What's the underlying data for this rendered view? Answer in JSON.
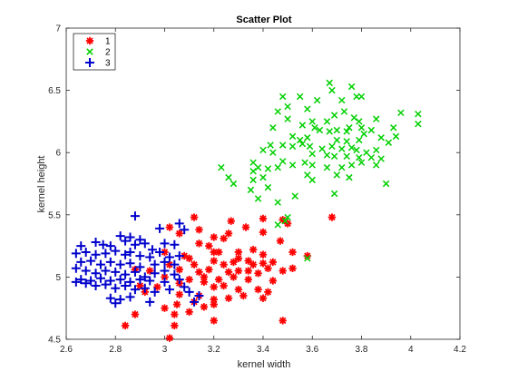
{
  "chart_data": {
    "type": "scatter",
    "title": "Scatter Plot",
    "xlabel": "kernel width",
    "ylabel": "kernel height",
    "xlim": [
      2.6,
      4.2
    ],
    "ylim": [
      4.5,
      7.0
    ],
    "xticks": [
      2.6,
      2.8,
      3.0,
      3.2,
      3.4,
      3.6,
      3.8,
      4.0,
      4.2
    ],
    "xtick_labels": [
      "2.6",
      "2.8",
      "3",
      "3.2",
      "3.4",
      "3.6",
      "3.8",
      "4",
      "4.2"
    ],
    "yticks": [
      4.5,
      5.0,
      5.5,
      6.0,
      6.5,
      7.0
    ],
    "ytick_labels": [
      "4.5",
      "5",
      "5.5",
      "6",
      "6.5",
      "7"
    ],
    "grid": false,
    "legend_position": "top-left",
    "series": [
      {
        "name": "1",
        "color": "#ff0000",
        "marker": "asterisk",
        "points": [
          [
            3.12,
            5.48
          ],
          [
            3.02,
            5.4
          ],
          [
            3.14,
            5.38
          ],
          [
            3.27,
            5.45
          ],
          [
            3.33,
            5.4
          ],
          [
            3.4,
            5.47
          ],
          [
            3.06,
            5.35
          ],
          [
            3.2,
            5.32
          ],
          [
            3.26,
            5.35
          ],
          [
            3.24,
            5.31
          ],
          [
            3.4,
            5.36
          ],
          [
            3.48,
            5.46
          ],
          [
            3.5,
            5.43
          ],
          [
            3.47,
            5.29
          ],
          [
            3.68,
            5.48
          ],
          [
            3.18,
            5.25
          ],
          [
            3.14,
            5.27
          ],
          [
            3.2,
            5.2
          ],
          [
            3.22,
            5.2
          ],
          [
            3.3,
            5.2
          ],
          [
            3.36,
            5.22
          ],
          [
            3.4,
            5.18
          ],
          [
            3.52,
            5.2
          ],
          [
            3.58,
            5.17
          ],
          [
            3.0,
            5.2
          ],
          [
            3.08,
            5.17
          ],
          [
            3.1,
            5.15
          ],
          [
            3.12,
            5.1
          ],
          [
            3.2,
            5.13
          ],
          [
            3.24,
            5.1
          ],
          [
            3.28,
            5.12
          ],
          [
            3.3,
            5.15
          ],
          [
            3.34,
            5.13
          ],
          [
            3.36,
            5.1
          ],
          [
            3.4,
            5.11
          ],
          [
            3.44,
            5.12
          ],
          [
            3.02,
            5.1
          ],
          [
            3.06,
            5.06
          ],
          [
            3.14,
            5.04
          ],
          [
            3.18,
            5.06
          ],
          [
            3.26,
            5.04
          ],
          [
            3.3,
            5.05
          ],
          [
            3.34,
            5.05
          ],
          [
            3.38,
            5.03
          ],
          [
            3.42,
            5.07
          ],
          [
            3.48,
            5.05
          ],
          [
            3.52,
            5.07
          ],
          [
            2.88,
            5.06
          ],
          [
            2.94,
            5.05
          ],
          [
            3.0,
            5.0
          ],
          [
            3.1,
            4.98
          ],
          [
            3.16,
            5.0
          ],
          [
            3.22,
            4.98
          ],
          [
            3.28,
            5.0
          ],
          [
            3.34,
            4.98
          ],
          [
            3.44,
            4.97
          ],
          [
            2.9,
            4.93
          ],
          [
            2.97,
            4.92
          ],
          [
            3.06,
            4.95
          ],
          [
            3.16,
            4.96
          ],
          [
            3.2,
            4.92
          ],
          [
            3.24,
            4.93
          ],
          [
            3.3,
            4.9
          ],
          [
            3.38,
            4.9
          ],
          [
            3.42,
            4.88
          ],
          [
            2.92,
            4.88
          ],
          [
            3.06,
            4.86
          ],
          [
            3.14,
            4.85
          ],
          [
            3.2,
            4.82
          ],
          [
            3.26,
            4.83
          ],
          [
            3.32,
            4.85
          ],
          [
            3.4,
            4.83
          ],
          [
            3.05,
            4.78
          ],
          [
            3.12,
            4.8
          ],
          [
            3.16,
            4.76
          ],
          [
            3.2,
            4.78
          ],
          [
            3.1,
            4.72
          ],
          [
            3.0,
            4.75
          ],
          [
            2.88,
            4.7
          ],
          [
            3.04,
            4.7
          ],
          [
            2.84,
            4.61
          ],
          [
            3.04,
            4.61
          ],
          [
            3.02,
            4.51
          ],
          [
            3.2,
            4.65
          ],
          [
            3.48,
            4.65
          ]
        ]
      },
      {
        "name": "2",
        "color": "#00d000",
        "marker": "x",
        "points": [
          [
            3.67,
            6.56
          ],
          [
            3.68,
            6.5
          ],
          [
            3.76,
            6.53
          ],
          [
            3.48,
            6.45
          ],
          [
            3.55,
            6.45
          ],
          [
            3.62,
            6.42
          ],
          [
            3.72,
            6.42
          ],
          [
            3.78,
            6.45
          ],
          [
            3.8,
            6.45
          ],
          [
            3.96,
            6.32
          ],
          [
            4.03,
            6.31
          ],
          [
            3.5,
            6.37
          ],
          [
            3.46,
            6.33
          ],
          [
            3.58,
            6.35
          ],
          [
            3.73,
            6.33
          ],
          [
            3.69,
            6.3
          ],
          [
            3.5,
            6.27
          ],
          [
            3.44,
            6.2
          ],
          [
            3.6,
            6.25
          ],
          [
            3.66,
            6.25
          ],
          [
            3.7,
            6.18
          ],
          [
            3.77,
            6.28
          ],
          [
            3.79,
            6.25
          ],
          [
            3.8,
            6.2
          ],
          [
            3.86,
            6.27
          ],
          [
            3.93,
            6.2
          ],
          [
            4.03,
            6.23
          ],
          [
            3.56,
            6.22
          ],
          [
            3.61,
            6.2
          ],
          [
            3.63,
            6.18
          ],
          [
            3.67,
            6.17
          ],
          [
            3.74,
            6.17
          ],
          [
            3.75,
            6.2
          ],
          [
            3.84,
            6.18
          ],
          [
            3.88,
            6.12
          ],
          [
            3.94,
            6.13
          ],
          [
            3.52,
            6.13
          ],
          [
            3.55,
            6.1
          ],
          [
            3.58,
            6.12
          ],
          [
            3.7,
            6.1
          ],
          [
            3.74,
            6.09
          ],
          [
            3.79,
            6.1
          ],
          [
            3.81,
            6.15
          ],
          [
            3.91,
            6.08
          ],
          [
            3.43,
            6.06
          ],
          [
            3.48,
            6.06
          ],
          [
            3.52,
            6.05
          ],
          [
            3.56,
            6.07
          ],
          [
            3.59,
            6.05
          ],
          [
            3.64,
            6.03
          ],
          [
            3.68,
            6.05
          ],
          [
            3.72,
            6.03
          ],
          [
            3.76,
            6.04
          ],
          [
            3.78,
            6.02
          ],
          [
            3.82,
            6.0
          ],
          [
            3.86,
            6.02
          ],
          [
            3.4,
            6.02
          ],
          [
            3.44,
            6.0
          ],
          [
            3.6,
            5.99
          ],
          [
            3.66,
            5.98
          ],
          [
            3.69,
            5.97
          ],
          [
            3.74,
            5.97
          ],
          [
            3.79,
            5.96
          ],
          [
            3.84,
            5.96
          ],
          [
            3.88,
            5.95
          ],
          [
            3.48,
            5.93
          ],
          [
            3.52,
            5.9
          ],
          [
            3.57,
            5.92
          ],
          [
            3.6,
            5.9
          ],
          [
            3.46,
            5.88
          ],
          [
            3.66,
            5.88
          ],
          [
            3.72,
            5.88
          ],
          [
            3.76,
            5.9
          ],
          [
            3.8,
            5.92
          ],
          [
            3.86,
            5.9
          ],
          [
            3.36,
            5.92
          ],
          [
            3.38,
            5.88
          ],
          [
            3.42,
            5.87
          ],
          [
            3.23,
            5.88
          ],
          [
            3.36,
            5.85
          ],
          [
            3.4,
            5.8
          ],
          [
            3.7,
            5.82
          ],
          [
            3.75,
            5.8
          ],
          [
            3.26,
            5.8
          ],
          [
            3.28,
            5.75
          ],
          [
            3.36,
            5.78
          ],
          [
            3.58,
            5.82
          ],
          [
            3.9,
            5.75
          ],
          [
            3.35,
            5.7
          ],
          [
            3.42,
            5.72
          ],
          [
            3.6,
            5.78
          ],
          [
            3.69,
            5.67
          ],
          [
            3.53,
            5.65
          ],
          [
            3.38,
            5.63
          ],
          [
            3.46,
            5.6
          ],
          [
            3.5,
            5.48
          ],
          [
            3.49,
            5.45
          ],
          [
            3.46,
            5.42
          ],
          [
            3.58,
            5.15
          ]
        ]
      },
      {
        "name": "3",
        "color": "#0000cc",
        "marker": "plus",
        "points": [
          [
            2.88,
            5.49
          ],
          [
            3.06,
            5.43
          ],
          [
            2.82,
            5.33
          ],
          [
            2.86,
            5.32
          ],
          [
            2.9,
            5.3
          ],
          [
            2.98,
            5.39
          ],
          [
            3.08,
            5.38
          ],
          [
            2.66,
            5.25
          ],
          [
            2.72,
            5.28
          ],
          [
            2.75,
            5.26
          ],
          [
            2.78,
            5.25
          ],
          [
            2.84,
            5.29
          ],
          [
            2.88,
            5.26
          ],
          [
            2.92,
            5.27
          ],
          [
            2.95,
            5.22
          ],
          [
            3.0,
            5.27
          ],
          [
            3.04,
            5.26
          ],
          [
            2.64,
            5.19
          ],
          [
            2.68,
            5.2
          ],
          [
            2.72,
            5.18
          ],
          [
            2.76,
            5.19
          ],
          [
            2.8,
            5.21
          ],
          [
            2.84,
            5.18
          ],
          [
            2.86,
            5.2
          ],
          [
            2.9,
            5.17
          ],
          [
            2.94,
            5.16
          ],
          [
            2.98,
            5.2
          ],
          [
            3.02,
            5.16
          ],
          [
            3.06,
            5.17
          ],
          [
            2.66,
            5.12
          ],
          [
            2.7,
            5.13
          ],
          [
            2.74,
            5.1
          ],
          [
            2.78,
            5.12
          ],
          [
            2.82,
            5.1
          ],
          [
            2.86,
            5.11
          ],
          [
            2.9,
            5.08
          ],
          [
            2.96,
            5.1
          ],
          [
            3.0,
            5.12
          ],
          [
            3.04,
            5.1
          ],
          [
            2.64,
            5.07
          ],
          [
            2.68,
            5.05
          ],
          [
            2.72,
            5.03
          ],
          [
            2.76,
            5.05
          ],
          [
            2.8,
            5.04
          ],
          [
            2.84,
            5.02
          ],
          [
            2.88,
            5.04
          ],
          [
            2.92,
            5.0
          ],
          [
            2.96,
            5.03
          ],
          [
            3.0,
            5.05
          ],
          [
            3.04,
            5.02
          ],
          [
            2.66,
            4.98
          ],
          [
            2.7,
            4.97
          ],
          [
            2.74,
            4.99
          ],
          [
            2.78,
            4.97
          ],
          [
            2.82,
            4.98
          ],
          [
            2.86,
            4.96
          ],
          [
            2.9,
            4.98
          ],
          [
            2.94,
            4.97
          ],
          [
            3.0,
            4.96
          ],
          [
            3.06,
            4.98
          ],
          [
            2.64,
            4.96
          ],
          [
            2.68,
            4.95
          ],
          [
            2.72,
            4.93
          ],
          [
            2.76,
            4.94
          ],
          [
            2.8,
            4.91
          ],
          [
            2.84,
            4.93
          ],
          [
            2.88,
            4.9
          ],
          [
            2.92,
            4.91
          ],
          [
            2.96,
            4.88
          ],
          [
            3.02,
            4.9
          ],
          [
            3.08,
            4.92
          ],
          [
            3.14,
            4.85
          ],
          [
            2.78,
            4.83
          ],
          [
            2.82,
            4.82
          ],
          [
            2.86,
            4.84
          ],
          [
            2.94,
            4.8
          ],
          [
            3.1,
            4.88
          ],
          [
            3.12,
            4.8
          ],
          [
            2.8,
            4.79
          ]
        ]
      }
    ]
  }
}
